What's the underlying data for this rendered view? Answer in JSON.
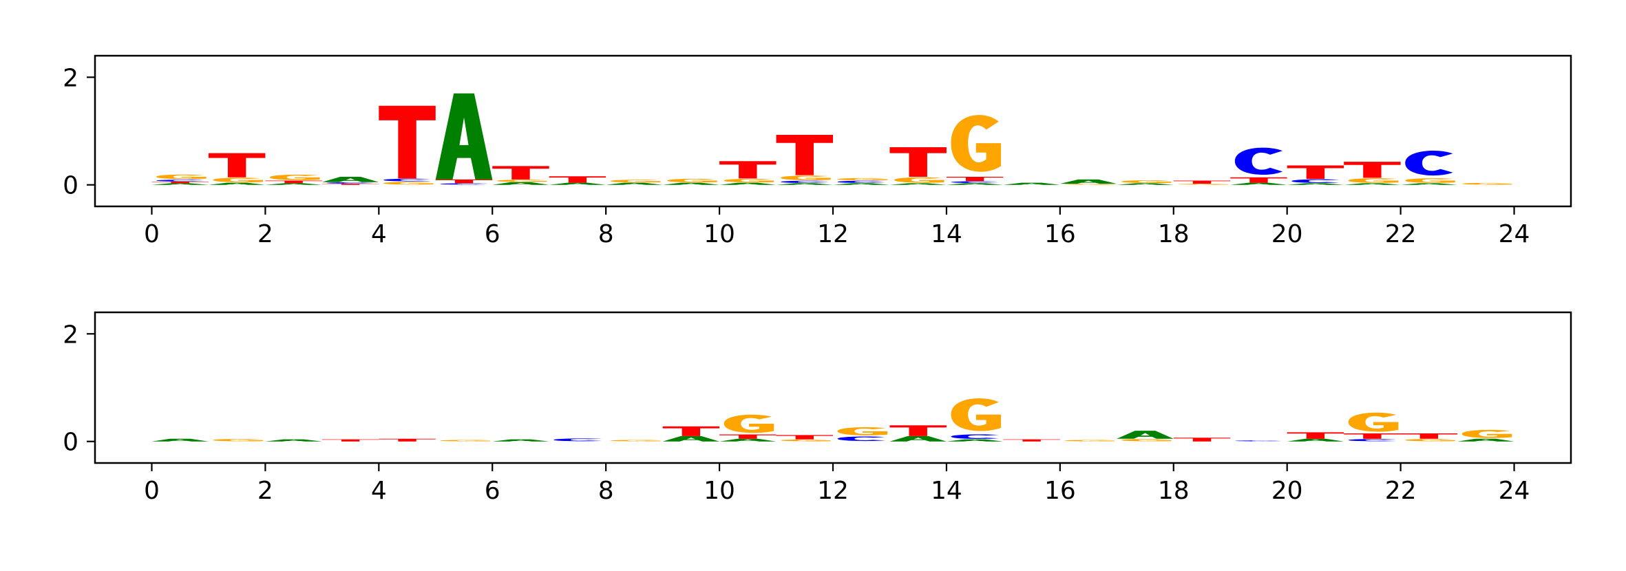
{
  "chart_data": [
    {
      "type": "sequence_logo",
      "title": "",
      "xlabel": "",
      "ylabel": "",
      "xlim": [
        -1,
        25
      ],
      "ylim": [
        -0.4,
        2.4
      ],
      "xticks": [
        "0",
        "2",
        "4",
        "6",
        "8",
        "10",
        "12",
        "14",
        "16",
        "18",
        "20",
        "22",
        "24"
      ],
      "yticks": [
        "0",
        "2"
      ],
      "grid": false,
      "colors": {
        "A": "#008000",
        "C": "#0000ff",
        "G": "#ffa500",
        "T": "#ff0000"
      },
      "positions": [
        {
          "pos": 0,
          "letters": [
            {
              "base": "A",
              "height": 0.03
            },
            {
              "base": "T",
              "height": 0.03
            },
            {
              "base": "C",
              "height": 0.04
            },
            {
              "base": "G",
              "height": 0.1
            }
          ]
        },
        {
          "pos": 1,
          "letters": [
            {
              "base": "A",
              "height": 0.04
            },
            {
              "base": "G",
              "height": 0.1
            },
            {
              "base": "T",
              "height": 0.45
            }
          ]
        },
        {
          "pos": 2,
          "letters": [
            {
              "base": "A",
              "height": 0.03
            },
            {
              "base": "T",
              "height": 0.05
            },
            {
              "base": "G",
              "height": 0.12
            }
          ]
        },
        {
          "pos": 3,
          "letters": [
            {
              "base": "T",
              "height": 0.02
            },
            {
              "base": "C",
              "height": 0.03
            },
            {
              "base": "A",
              "height": 0.1
            }
          ]
        },
        {
          "pos": 4,
          "letters": [
            {
              "base": "G",
              "height": 0.06
            },
            {
              "base": "C",
              "height": 0.06
            },
            {
              "base": "T",
              "height": 1.35
            }
          ]
        },
        {
          "pos": 5,
          "letters": [
            {
              "base": "C",
              "height": 0.03
            },
            {
              "base": "T",
              "height": 0.07
            },
            {
              "base": "A",
              "height": 1.6
            }
          ]
        },
        {
          "pos": 6,
          "letters": [
            {
              "base": "A",
              "height": 0.05
            },
            {
              "base": "G",
              "height": 0.05
            },
            {
              "base": "T",
              "height": 0.25
            }
          ]
        },
        {
          "pos": 7,
          "letters": [
            {
              "base": "A",
              "height": 0.04
            },
            {
              "base": "T",
              "height": 0.12
            }
          ]
        },
        {
          "pos": 8,
          "letters": [
            {
              "base": "A",
              "height": 0.04
            },
            {
              "base": "G",
              "height": 0.06
            }
          ]
        },
        {
          "pos": 9,
          "letters": [
            {
              "base": "A",
              "height": 0.04
            },
            {
              "base": "G",
              "height": 0.08
            }
          ]
        },
        {
          "pos": 10,
          "letters": [
            {
              "base": "A",
              "height": 0.04
            },
            {
              "base": "G",
              "height": 0.08
            },
            {
              "base": "T",
              "height": 0.32
            }
          ]
        },
        {
          "pos": 11,
          "letters": [
            {
              "base": "A",
              "height": 0.03
            },
            {
              "base": "C",
              "height": 0.05
            },
            {
              "base": "G",
              "height": 0.1
            },
            {
              "base": "T",
              "height": 0.75
            }
          ]
        },
        {
          "pos": 12,
          "letters": [
            {
              "base": "A",
              "height": 0.03
            },
            {
              "base": "C",
              "height": 0.05
            },
            {
              "base": "G",
              "height": 0.05
            }
          ]
        },
        {
          "pos": 13,
          "letters": [
            {
              "base": "A",
              "height": 0.03
            },
            {
              "base": "G",
              "height": 0.12
            },
            {
              "base": "T",
              "height": 0.55
            }
          ]
        },
        {
          "pos": 14,
          "letters": [
            {
              "base": "A",
              "height": 0.03
            },
            {
              "base": "C",
              "height": 0.04
            },
            {
              "base": "T",
              "height": 0.08
            },
            {
              "base": "G",
              "height": 1.25
            }
          ]
        },
        {
          "pos": 15,
          "letters": [
            {
              "base": "A",
              "height": 0.04
            }
          ]
        },
        {
          "pos": 16,
          "letters": [
            {
              "base": "G",
              "height": 0.02
            },
            {
              "base": "A",
              "height": 0.08
            }
          ]
        },
        {
          "pos": 17,
          "letters": [
            {
              "base": "A",
              "height": 0.03
            },
            {
              "base": "G",
              "height": 0.06
            }
          ]
        },
        {
          "pos": 18,
          "letters": [
            {
              "base": "G",
              "height": 0.02
            },
            {
              "base": "T",
              "height": 0.06
            }
          ]
        },
        {
          "pos": 19,
          "letters": [
            {
              "base": "A",
              "height": 0.04
            },
            {
              "base": "T",
              "height": 0.1
            },
            {
              "base": "C",
              "height": 0.6
            }
          ]
        },
        {
          "pos": 20,
          "letters": [
            {
              "base": "A",
              "height": 0.03
            },
            {
              "base": "C",
              "height": 0.08
            },
            {
              "base": "T",
              "height": 0.25
            }
          ]
        },
        {
          "pos": 21,
          "letters": [
            {
              "base": "A",
              "height": 0.03
            },
            {
              "base": "G",
              "height": 0.1
            },
            {
              "base": "T",
              "height": 0.3
            }
          ]
        },
        {
          "pos": 22,
          "letters": [
            {
              "base": "A",
              "height": 0.03
            },
            {
              "base": "G",
              "height": 0.1
            },
            {
              "base": "C",
              "height": 0.55
            }
          ]
        },
        {
          "pos": 23,
          "letters": [
            {
              "base": "G",
              "height": 0.04
            }
          ]
        }
      ]
    },
    {
      "type": "sequence_logo",
      "title": "",
      "xlabel": "",
      "ylabel": "",
      "xlim": [
        -1,
        25
      ],
      "ylim": [
        -0.4,
        2.4
      ],
      "xticks": [
        "0",
        "2",
        "4",
        "6",
        "8",
        "10",
        "12",
        "14",
        "16",
        "18",
        "20",
        "22",
        "24"
      ],
      "yticks": [
        "0",
        "2"
      ],
      "grid": false,
      "colors": {
        "A": "#008000",
        "C": "#0000ff",
        "G": "#ffa500",
        "T": "#ff0000"
      },
      "positions": [
        {
          "pos": 0,
          "letters": [
            {
              "base": "A",
              "height": 0.05
            }
          ]
        },
        {
          "pos": 1,
          "letters": [
            {
              "base": "G",
              "height": 0.05
            }
          ]
        },
        {
          "pos": 2,
          "letters": [
            {
              "base": "A",
              "height": 0.04
            }
          ]
        },
        {
          "pos": 3,
          "letters": [
            {
              "base": "T",
              "height": 0.04
            }
          ]
        },
        {
          "pos": 4,
          "letters": [
            {
              "base": "T",
              "height": 0.05
            }
          ]
        },
        {
          "pos": 5,
          "letters": [
            {
              "base": "G",
              "height": 0.03
            }
          ]
        },
        {
          "pos": 6,
          "letters": [
            {
              "base": "A",
              "height": 0.04
            }
          ]
        },
        {
          "pos": 7,
          "letters": [
            {
              "base": "C",
              "height": 0.06
            }
          ]
        },
        {
          "pos": 8,
          "letters": [
            {
              "base": "G",
              "height": 0.03
            }
          ]
        },
        {
          "pos": 9,
          "letters": [
            {
              "base": "A",
              "height": 0.1
            },
            {
              "base": "T",
              "height": 0.18
            }
          ]
        },
        {
          "pos": 10,
          "letters": [
            {
              "base": "A",
              "height": 0.05
            },
            {
              "base": "T",
              "height": 0.08
            },
            {
              "base": "G",
              "height": 0.4
            }
          ]
        },
        {
          "pos": 11,
          "letters": [
            {
              "base": "G",
              "height": 0.04
            },
            {
              "base": "T",
              "height": 0.08
            }
          ]
        },
        {
          "pos": 12,
          "letters": [
            {
              "base": "C",
              "height": 0.1
            },
            {
              "base": "G",
              "height": 0.18
            }
          ]
        },
        {
          "pos": 13,
          "letters": [
            {
              "base": "A",
              "height": 0.1
            },
            {
              "base": "T",
              "height": 0.2
            }
          ]
        },
        {
          "pos": 14,
          "letters": [
            {
              "base": "A",
              "height": 0.04
            },
            {
              "base": "C",
              "height": 0.1
            },
            {
              "base": "G",
              "height": 0.72
            }
          ]
        },
        {
          "pos": 15,
          "letters": [
            {
              "base": "T",
              "height": 0.04
            }
          ]
        },
        {
          "pos": 16,
          "letters": [
            {
              "base": "G",
              "height": 0.03
            }
          ]
        },
        {
          "pos": 17,
          "letters": [
            {
              "base": "G",
              "height": 0.05
            },
            {
              "base": "A",
              "height": 0.15
            }
          ]
        },
        {
          "pos": 18,
          "letters": [
            {
              "base": "T",
              "height": 0.07
            }
          ]
        },
        {
          "pos": 19,
          "letters": [
            {
              "base": "C",
              "height": 0.02
            }
          ]
        },
        {
          "pos": 20,
          "letters": [
            {
              "base": "A",
              "height": 0.05
            },
            {
              "base": "T",
              "height": 0.12
            }
          ]
        },
        {
          "pos": 21,
          "letters": [
            {
              "base": "C",
              "height": 0.05
            },
            {
              "base": "T",
              "height": 0.1
            },
            {
              "base": "G",
              "height": 0.42
            }
          ]
        },
        {
          "pos": 22,
          "letters": [
            {
              "base": "G",
              "height": 0.05
            },
            {
              "base": "T",
              "height": 0.1
            }
          ]
        },
        {
          "pos": 23,
          "letters": [
            {
              "base": "A",
              "height": 0.05
            },
            {
              "base": "G",
              "height": 0.18
            }
          ]
        }
      ]
    }
  ]
}
